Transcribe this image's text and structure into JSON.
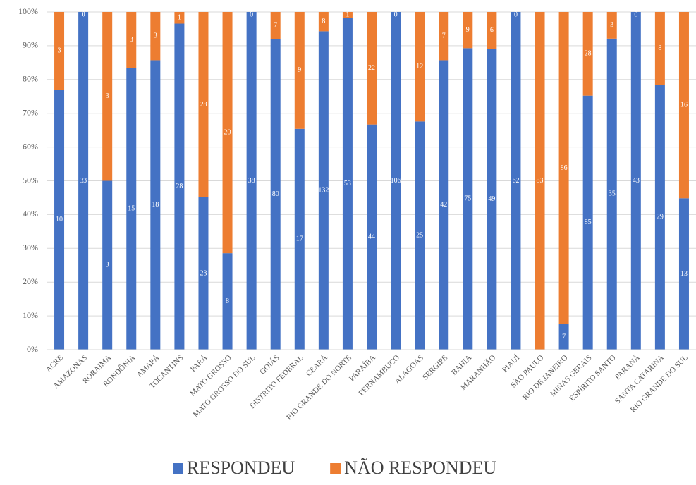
{
  "chart_data": {
    "type": "bar",
    "stacked": "percent",
    "categories": [
      "ACRE",
      "AMAZONAS",
      "RORAIMA",
      "RONDÔNIA",
      "AMAPÁ",
      "TOCANTINS",
      "PARÁ",
      "MATO GROSSO",
      "MATO GROSSO DO SUL",
      "GOIÁS",
      "DISTRITO FEDERAL",
      "CEARÁ",
      "RIO GRANDE DO NORTE",
      "PARAÍBA",
      "PERNAMBUCO",
      "ALAGOAS",
      "SERGIPE",
      "BAHIA",
      "MARANHÃO",
      "PIAUÍ",
      "SÃO PAULO",
      "RIO DE JANEIRO",
      "MINAS GERAIS",
      "ESPÍRITO SANTO",
      "PARANÁ",
      "SANTA CATARINA",
      "RIO GRANDE DO SUL"
    ],
    "series": [
      {
        "name": "RESPONDEU",
        "color": "#4472c4",
        "values": [
          10,
          33,
          3,
          15,
          18,
          28,
          23,
          8,
          38,
          80,
          17,
          132,
          53,
          44,
          106,
          25,
          42,
          75,
          49,
          62,
          0,
          7,
          85,
          35,
          43,
          29,
          13
        ]
      },
      {
        "name": "NÃO RESPONDEU",
        "color": "#ed7d31",
        "values": [
          3,
          0,
          3,
          3,
          3,
          1,
          28,
          20,
          0,
          7,
          9,
          8,
          1,
          22,
          0,
          12,
          7,
          9,
          6,
          0,
          83,
          86,
          28,
          3,
          0,
          8,
          16
        ]
      }
    ],
    "ylim": [
      0,
      100
    ],
    "yticks": [
      {
        "value": 0,
        "label": "0%"
      },
      {
        "value": 10,
        "label": "10%"
      },
      {
        "value": 20,
        "label": "20%"
      },
      {
        "value": 30,
        "label": "30%"
      },
      {
        "value": 40,
        "label": "40%"
      },
      {
        "value": 50,
        "label": "50%"
      },
      {
        "value": 60,
        "label": "60%"
      },
      {
        "value": 70,
        "label": "70%"
      },
      {
        "value": 80,
        "label": "80%"
      },
      {
        "value": 90,
        "label": "90%"
      },
      {
        "value": 100,
        "label": "100%"
      }
    ],
    "grid": true,
    "legend": "bottom"
  }
}
